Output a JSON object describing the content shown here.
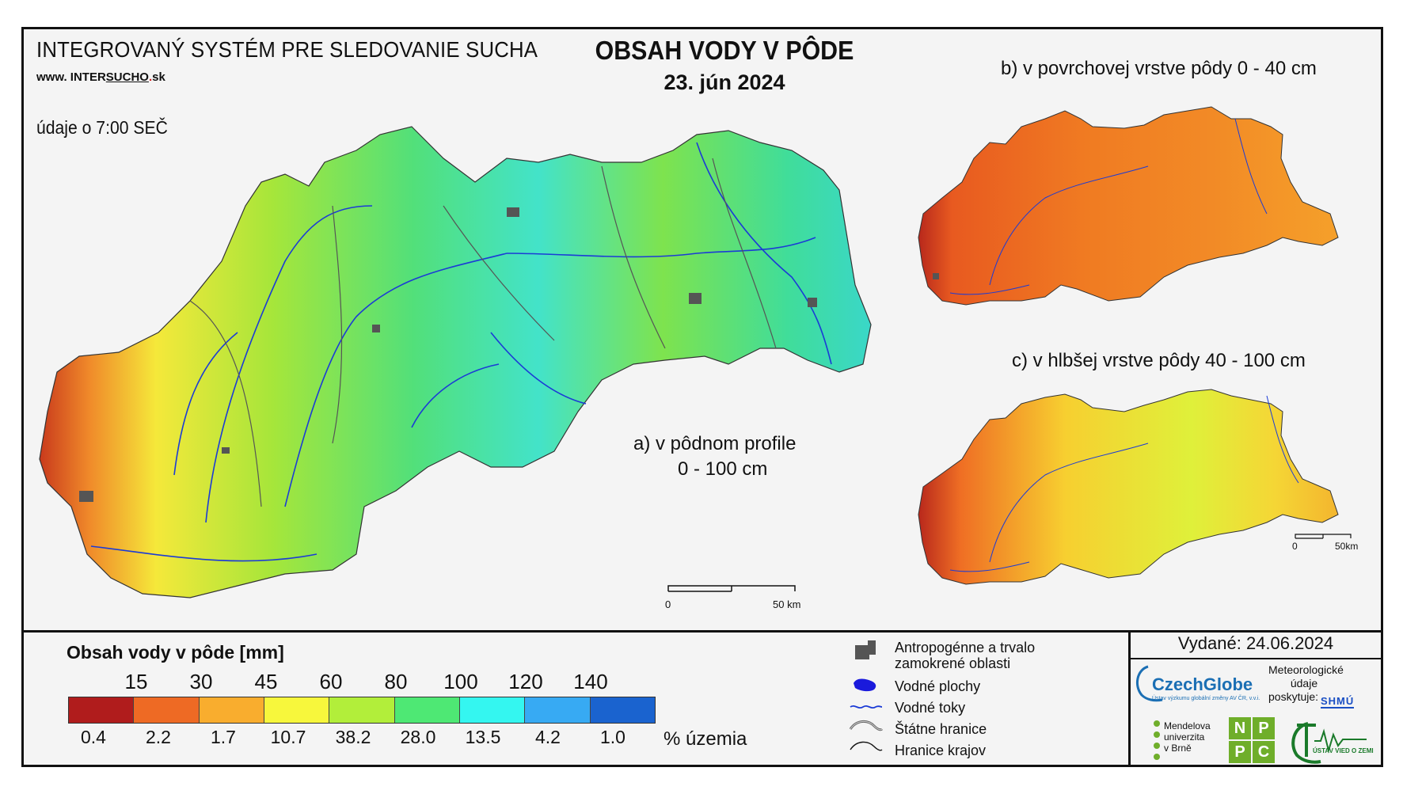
{
  "header": {
    "system_title": "INTEGROVANÝ SYSTÉM PRE SLEDOVANIE SUCHA",
    "site_prefix": "www. INTER",
    "site_sucho": "SUCHO",
    "site_dot": ".",
    "site_suffix": "sk",
    "data_time": "údaje o 7:00 SEČ",
    "main_title": "OBSAH VODY V PÔDE",
    "date": "23. jún 2024"
  },
  "maps": {
    "a_caption_line1": "a) v pôdnom profile",
    "a_caption_line2": "0 - 100 cm",
    "b_caption": "b) v povrchovej vrstve pôdy 0 - 40 cm",
    "c_caption": "c) v hlbšej vrstve pôdy 40 - 100 cm",
    "scale_main": {
      "zero": "0",
      "end": "50 km"
    },
    "scale_small": {
      "zero": "0",
      "end": "50km"
    }
  },
  "legend": {
    "title": "Obsah vody v pôde  [mm]",
    "thresholds": [
      "15",
      "30",
      "45",
      "60",
      "80",
      "100",
      "120",
      "140"
    ],
    "classes": [
      {
        "color": "#b01c1c",
        "percent": "0.4"
      },
      {
        "color": "#ee6a24",
        "percent": "2.2"
      },
      {
        "color": "#f9ad2e",
        "percent": "1.7"
      },
      {
        "color": "#f7f73c",
        "percent": "10.7"
      },
      {
        "color": "#b2ee3a",
        "percent": "38.2"
      },
      {
        "color": "#4ee874",
        "percent": "28.0"
      },
      {
        "color": "#34f6f0",
        "percent": "13.5"
      },
      {
        "color": "#37aaf3",
        "percent": "4.2"
      },
      {
        "color": "#1a63cf",
        "percent": "1.0"
      }
    ],
    "percent_unit": "% územia"
  },
  "symbols": {
    "anthropogenic_line1": "Antropogénne a trvalo",
    "anthropogenic_line2": "zamokrené oblasti",
    "water_bodies": "Vodné plochy",
    "rivers": "Vodné toky",
    "state_borders": "Štátne hranice",
    "region_borders": "Hranice krajov"
  },
  "footer": {
    "issued": "Vydané: 24.06.2024",
    "czechglobe": "CzechGlobe",
    "czechglobe_sub": "Ústav výzkumu globální změny AV ČR, v.v.i.",
    "meteo_line1": "Meteorologické",
    "meteo_line2": "údaje",
    "meteo_line3": "poskytuje:",
    "shmu": "SHMÚ",
    "mendel_line1": "Mendelova",
    "mendel_line2": "univerzita",
    "mendel_line3": "v Brně",
    "nppc": [
      "N",
      "P",
      "P",
      "C"
    ],
    "uvz": "ÚSTAV VIED O ZEMI"
  }
}
